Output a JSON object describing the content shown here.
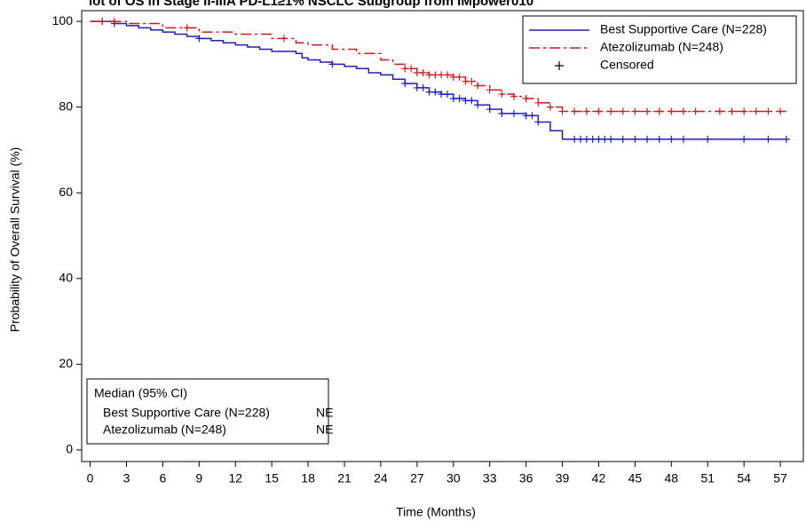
{
  "chart_data": {
    "type": "km",
    "title": "lot of OS in Stage II-IIIA PD-L1≥1% NSCLC Subgroup from IMpower010",
    "xlabel": "Time (Months)",
    "ylabel": "Probability of Overall Survival (%)",
    "xlim": [
      -0.7,
      58.9
    ],
    "ylim": [
      -2.7,
      102.5
    ],
    "xticks": [
      0,
      3,
      6,
      9,
      12,
      15,
      18,
      21,
      24,
      27,
      30,
      33,
      36,
      39,
      42,
      45,
      48,
      51,
      54,
      57
    ],
    "yticks": [
      0,
      20,
      40,
      60,
      80,
      100
    ],
    "censored_label": "Censored",
    "series": [
      {
        "name": "Best Supportive Care (N=228)",
        "color": "#1f1fbf",
        "dash": "solid",
        "x": [
          0,
          1,
          2,
          3,
          4,
          5,
          6,
          7,
          8,
          9,
          10,
          11,
          12,
          13,
          14,
          15,
          16,
          17,
          17.5,
          18,
          19,
          20,
          21,
          22,
          23,
          24,
          25,
          26,
          27,
          28,
          29,
          30,
          31,
          32,
          33,
          34,
          35,
          36,
          37,
          38,
          39,
          57.5
        ],
        "values": [
          100,
          100,
          99.5,
          99,
          98.5,
          98,
          97.5,
          97,
          96.5,
          96,
          95.5,
          95,
          94.5,
          94,
          93.5,
          93,
          93,
          92.5,
          91.5,
          91,
          90.5,
          90,
          89.5,
          89,
          88,
          87.5,
          86.5,
          85.5,
          84.5,
          83.5,
          83,
          82,
          81.5,
          80.5,
          79.5,
          78.5,
          78.5,
          78,
          76.5,
          74.5,
          72.5,
          72.5
        ],
        "censored": {
          "x": [
            1,
            2,
            9,
            20,
            26,
            27,
            27.5,
            28,
            28.5,
            29,
            29.5,
            30,
            30.5,
            31,
            31.5,
            32,
            33,
            34,
            35,
            36,
            36.5,
            37,
            40,
            40.5,
            41,
            41.5,
            42,
            42.5,
            43,
            44,
            45,
            46,
            47,
            48,
            49,
            51,
            54,
            56,
            57.5
          ],
          "y": [
            100,
            99.5,
            96,
            90,
            85.5,
            84.5,
            84.5,
            83.5,
            83.5,
            83,
            83,
            82,
            82,
            81.5,
            81.5,
            80.5,
            79.5,
            78.5,
            78.5,
            78,
            78,
            76.5,
            72.5,
            72.5,
            72.5,
            72.5,
            72.5,
            72.5,
            72.5,
            72.5,
            72.5,
            72.5,
            72.5,
            72.5,
            72.5,
            72.5,
            72.5,
            72.5,
            72.5
          ]
        }
      },
      {
        "name": "Atezolizumab (N=248)",
        "color": "#d11a1a",
        "dash": "dashdot",
        "x": [
          0,
          3,
          6,
          9,
          12,
          15,
          17,
          18,
          20,
          22,
          24,
          25,
          26,
          27,
          28,
          30,
          31,
          32,
          33,
          34,
          35,
          36,
          37,
          38,
          39,
          57.5
        ],
        "values": [
          100,
          99.5,
          98.5,
          97.5,
          97,
          96,
          95,
          94.5,
          93.5,
          92.5,
          91,
          90,
          89,
          88,
          87.5,
          87,
          86,
          85,
          84,
          83,
          82.5,
          82,
          81,
          80,
          79,
          79
        ],
        "censored": {
          "x": [
            1,
            2,
            8,
            16,
            26,
            26.5,
            27,
            27.5,
            28,
            28.5,
            29,
            29.5,
            30,
            30.5,
            31,
            31.5,
            32,
            33,
            34,
            35,
            36,
            37,
            38,
            39,
            40,
            41,
            42,
            43,
            44,
            45,
            46,
            47,
            48,
            49,
            50,
            52,
            53,
            54,
            55,
            56,
            57
          ],
          "y": [
            100,
            100,
            98.5,
            96,
            89,
            89,
            88,
            88,
            87.5,
            87.5,
            87.5,
            87.5,
            87,
            87,
            86,
            86,
            85,
            84,
            83,
            82.5,
            82,
            81,
            80,
            79,
            79,
            79,
            79,
            79,
            79,
            79,
            79,
            79,
            79,
            79,
            79,
            79,
            79,
            79,
            79,
            79,
            79
          ]
        }
      }
    ],
    "median_table": {
      "title": "Median (95% CI)",
      "rows": [
        {
          "label": "Best Supportive Care (N=228)",
          "value": "NE"
        },
        {
          "label": "Atezolizumab (N=248)",
          "value": "NE"
        }
      ]
    }
  }
}
